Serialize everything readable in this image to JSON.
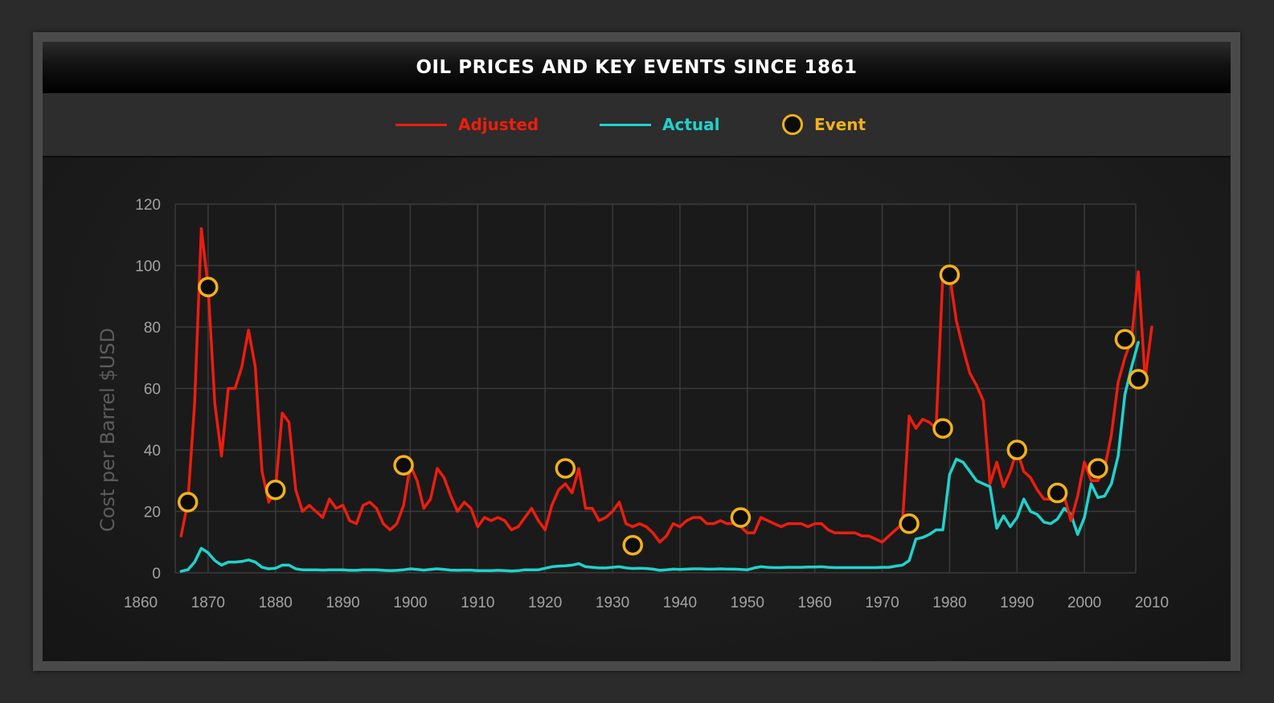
{
  "title": "OIL PRICES AND KEY EVENTS SINCE 1861",
  "legend": {
    "adjusted_label": "Adjusted",
    "actual_label": "Actual",
    "event_label": "Event"
  },
  "colors": {
    "adjusted": "#ee1d0e",
    "actual": "#1fd3cd",
    "event_ring": "#f2b21b",
    "event_fill": "#0c0c0c",
    "grid": "#3a3a3a"
  },
  "chart_data": {
    "type": "line",
    "title": "OIL PRICES AND KEY EVENTS SINCE 1861",
    "ylabel": "Cost per Barrel $USD",
    "xlabel": "",
    "xlim": [
      1860,
      2010
    ],
    "ylim": [
      0,
      120
    ],
    "x_ticks": [
      1860,
      1870,
      1880,
      1890,
      1900,
      1910,
      1920,
      1930,
      1940,
      1950,
      1960,
      1970,
      1980,
      1990,
      2000,
      2010
    ],
    "y_ticks": [
      0,
      20,
      40,
      60,
      80,
      100,
      120
    ],
    "grid": true,
    "legend_position": "top",
    "series": [
      {
        "name": "Adjusted",
        "points": [
          [
            1866,
            12
          ],
          [
            1867,
            23
          ],
          [
            1868,
            55
          ],
          [
            1869,
            112
          ],
          [
            1870,
            93
          ],
          [
            1871,
            55
          ],
          [
            1872,
            38
          ],
          [
            1873,
            60
          ],
          [
            1874,
            60
          ],
          [
            1875,
            67
          ],
          [
            1876,
            79
          ],
          [
            1877,
            67
          ],
          [
            1878,
            33
          ],
          [
            1879,
            23
          ],
          [
            1880,
            27
          ],
          [
            1881,
            52
          ],
          [
            1882,
            49
          ],
          [
            1883,
            27
          ],
          [
            1884,
            20
          ],
          [
            1885,
            22
          ],
          [
            1886,
            20
          ],
          [
            1887,
            18
          ],
          [
            1888,
            24
          ],
          [
            1889,
            21
          ],
          [
            1890,
            22
          ],
          [
            1891,
            17
          ],
          [
            1892,
            16
          ],
          [
            1893,
            22
          ],
          [
            1894,
            23
          ],
          [
            1895,
            21
          ],
          [
            1896,
            16
          ],
          [
            1897,
            14
          ],
          [
            1898,
            16
          ],
          [
            1899,
            22
          ],
          [
            1900,
            35
          ],
          [
            1901,
            30
          ],
          [
            1902,
            21
          ],
          [
            1903,
            24
          ],
          [
            1904,
            34
          ],
          [
            1905,
            31
          ],
          [
            1906,
            25
          ],
          [
            1907,
            20
          ],
          [
            1908,
            23
          ],
          [
            1909,
            21
          ],
          [
            1910,
            15
          ],
          [
            1911,
            18
          ],
          [
            1912,
            17
          ],
          [
            1913,
            18
          ],
          [
            1914,
            17
          ],
          [
            1915,
            14
          ],
          [
            1916,
            15
          ],
          [
            1917,
            18
          ],
          [
            1918,
            21
          ],
          [
            1919,
            17
          ],
          [
            1920,
            14
          ],
          [
            1921,
            22
          ],
          [
            1922,
            27
          ],
          [
            1923,
            29
          ],
          [
            1924,
            26
          ],
          [
            1925,
            34
          ],
          [
            1926,
            21
          ],
          [
            1927,
            21
          ],
          [
            1928,
            17
          ],
          [
            1929,
            18
          ],
          [
            1930,
            20
          ],
          [
            1931,
            23
          ],
          [
            1932,
            16
          ],
          [
            1933,
            15
          ],
          [
            1934,
            16
          ],
          [
            1935,
            15
          ],
          [
            1936,
            13
          ],
          [
            1937,
            10
          ],
          [
            1938,
            12
          ],
          [
            1939,
            16
          ],
          [
            1940,
            15
          ],
          [
            1941,
            17
          ],
          [
            1942,
            18
          ],
          [
            1943,
            18
          ],
          [
            1944,
            16
          ],
          [
            1945,
            16
          ],
          [
            1946,
            17
          ],
          [
            1947,
            16
          ],
          [
            1948,
            16
          ],
          [
            1949,
            15
          ],
          [
            1950,
            13
          ],
          [
            1951,
            13
          ],
          [
            1952,
            18
          ],
          [
            1953,
            17
          ],
          [
            1954,
            16
          ],
          [
            1955,
            15
          ],
          [
            1956,
            16
          ],
          [
            1957,
            16
          ],
          [
            1958,
            16
          ],
          [
            1959,
            15
          ],
          [
            1960,
            16
          ],
          [
            1961,
            16
          ],
          [
            1962,
            14
          ],
          [
            1963,
            13
          ],
          [
            1964,
            13
          ],
          [
            1965,
            13
          ],
          [
            1966,
            13
          ],
          [
            1967,
            12
          ],
          [
            1968,
            12
          ],
          [
            1969,
            11
          ],
          [
            1970,
            10
          ],
          [
            1971,
            12
          ],
          [
            1972,
            14
          ],
          [
            1973,
            16
          ],
          [
            1974,
            51
          ],
          [
            1975,
            47
          ],
          [
            1976,
            50
          ],
          [
            1977,
            49
          ],
          [
            1978,
            47
          ],
          [
            1979,
            97
          ],
          [
            1980,
            97
          ],
          [
            1981,
            82
          ],
          [
            1982,
            73
          ],
          [
            1983,
            65
          ],
          [
            1984,
            61
          ],
          [
            1985,
            56
          ],
          [
            1986,
            29
          ],
          [
            1987,
            36
          ],
          [
            1988,
            28
          ],
          [
            1989,
            33
          ],
          [
            1990,
            40
          ],
          [
            1991,
            33
          ],
          [
            1992,
            31
          ],
          [
            1993,
            27
          ],
          [
            1994,
            24
          ],
          [
            1995,
            24
          ],
          [
            1996,
            27
          ],
          [
            1997,
            25
          ],
          [
            1998,
            17
          ],
          [
            1999,
            25
          ],
          [
            2000,
            36
          ],
          [
            2001,
            30
          ],
          [
            2002,
            30
          ],
          [
            2003,
            34
          ],
          [
            2004,
            45
          ],
          [
            2005,
            62
          ],
          [
            2006,
            70
          ],
          [
            2007,
            76
          ],
          [
            2008,
            98
          ],
          [
            2009,
            63
          ],
          [
            2010,
            80
          ]
        ]
      },
      {
        "name": "Actual",
        "points": [
          [
            1866,
            0.5
          ],
          [
            1867,
            1
          ],
          [
            1868,
            3.5
          ],
          [
            1869,
            8
          ],
          [
            1870,
            6.5
          ],
          [
            1871,
            4
          ],
          [
            1872,
            2.5
          ],
          [
            1873,
            3.5
          ],
          [
            1874,
            3.5
          ],
          [
            1875,
            3.7
          ],
          [
            1876,
            4.2
          ],
          [
            1877,
            3.5
          ],
          [
            1878,
            1.8
          ],
          [
            1879,
            1.3
          ],
          [
            1880,
            1.5
          ],
          [
            1881,
            2.5
          ],
          [
            1882,
            2.5
          ],
          [
            1883,
            1.3
          ],
          [
            1884,
            1
          ],
          [
            1885,
            1
          ],
          [
            1886,
            1
          ],
          [
            1887,
            0.9
          ],
          [
            1888,
            1
          ],
          [
            1889,
            1
          ],
          [
            1890,
            1
          ],
          [
            1891,
            0.8
          ],
          [
            1892,
            0.8
          ],
          [
            1893,
            1
          ],
          [
            1894,
            1
          ],
          [
            1895,
            1
          ],
          [
            1896,
            0.8
          ],
          [
            1897,
            0.7
          ],
          [
            1898,
            0.8
          ],
          [
            1899,
            1
          ],
          [
            1900,
            1.3
          ],
          [
            1901,
            1.1
          ],
          [
            1902,
            0.9
          ],
          [
            1903,
            1.1
          ],
          [
            1904,
            1.3
          ],
          [
            1905,
            1.1
          ],
          [
            1906,
            0.9
          ],
          [
            1907,
            0.8
          ],
          [
            1908,
            0.9
          ],
          [
            1909,
            0.9
          ],
          [
            1910,
            0.7
          ],
          [
            1911,
            0.7
          ],
          [
            1912,
            0.7
          ],
          [
            1913,
            0.8
          ],
          [
            1914,
            0.7
          ],
          [
            1915,
            0.6
          ],
          [
            1916,
            0.7
          ],
          [
            1917,
            1
          ],
          [
            1918,
            1
          ],
          [
            1919,
            1
          ],
          [
            1920,
            1.5
          ],
          [
            1921,
            2
          ],
          [
            1922,
            2.2
          ],
          [
            1923,
            2.3
          ],
          [
            1924,
            2.5
          ],
          [
            1925,
            3
          ],
          [
            1926,
            2
          ],
          [
            1927,
            1.8
          ],
          [
            1928,
            1.6
          ],
          [
            1929,
            1.6
          ],
          [
            1930,
            1.8
          ],
          [
            1931,
            2
          ],
          [
            1932,
            1.6
          ],
          [
            1933,
            1.4
          ],
          [
            1934,
            1.5
          ],
          [
            1935,
            1.4
          ],
          [
            1936,
            1.2
          ],
          [
            1937,
            0.8
          ],
          [
            1938,
            1
          ],
          [
            1939,
            1.2
          ],
          [
            1940,
            1.1
          ],
          [
            1941,
            1.2
          ],
          [
            1942,
            1.3
          ],
          [
            1943,
            1.3
          ],
          [
            1944,
            1.2
          ],
          [
            1945,
            1.2
          ],
          [
            1946,
            1.3
          ],
          [
            1947,
            1.2
          ],
          [
            1948,
            1.2
          ],
          [
            1949,
            1.1
          ],
          [
            1950,
            1
          ],
          [
            1951,
            1.6
          ],
          [
            1952,
            2
          ],
          [
            1953,
            1.8
          ],
          [
            1954,
            1.7
          ],
          [
            1955,
            1.7
          ],
          [
            1956,
            1.8
          ],
          [
            1957,
            1.8
          ],
          [
            1958,
            1.8
          ],
          [
            1959,
            1.9
          ],
          [
            1960,
            1.9
          ],
          [
            1961,
            2
          ],
          [
            1962,
            1.8
          ],
          [
            1963,
            1.7
          ],
          [
            1964,
            1.7
          ],
          [
            1965,
            1.7
          ],
          [
            1966,
            1.7
          ],
          [
            1967,
            1.7
          ],
          [
            1968,
            1.7
          ],
          [
            1969,
            1.7
          ],
          [
            1970,
            1.8
          ],
          [
            1971,
            1.8
          ],
          [
            1972,
            2.2
          ],
          [
            1973,
            2.5
          ],
          [
            1974,
            4
          ],
          [
            1975,
            11
          ],
          [
            1976,
            11.5
          ],
          [
            1977,
            12.5
          ],
          [
            1978,
            14
          ],
          [
            1979,
            14
          ],
          [
            1980,
            32
          ],
          [
            1981,
            37
          ],
          [
            1982,
            36
          ],
          [
            1983,
            33
          ],
          [
            1984,
            30
          ],
          [
            1985,
            29
          ],
          [
            1986,
            28
          ],
          [
            1987,
            14.5
          ],
          [
            1988,
            18.5
          ],
          [
            1989,
            15
          ],
          [
            1990,
            18
          ],
          [
            1991,
            24
          ],
          [
            1992,
            20
          ],
          [
            1993,
            19
          ],
          [
            1994,
            16.5
          ],
          [
            1995,
            16
          ],
          [
            1996,
            17.5
          ],
          [
            1997,
            21
          ],
          [
            1998,
            19
          ],
          [
            1999,
            12.5
          ],
          [
            2000,
            18
          ],
          [
            2001,
            29
          ],
          [
            2002,
            24.5
          ],
          [
            2003,
            25
          ],
          [
            2004,
            29
          ],
          [
            2005,
            38
          ],
          [
            2006,
            58
          ],
          [
            2007,
            67
          ],
          [
            2008,
            75
          ]
        ]
      }
    ],
    "events": [
      [
        1867,
        23
      ],
      [
        1870,
        93
      ],
      [
        1880,
        27
      ],
      [
        1899,
        35
      ],
      [
        1923,
        34
      ],
      [
        1933,
        9
      ],
      [
        1949,
        18
      ],
      [
        1974,
        16
      ],
      [
        1979,
        47
      ],
      [
        1980,
        97
      ],
      [
        1990,
        40
      ],
      [
        1996,
        26
      ],
      [
        2002,
        34
      ],
      [
        2006,
        76
      ],
      [
        2008,
        63
      ]
    ]
  }
}
